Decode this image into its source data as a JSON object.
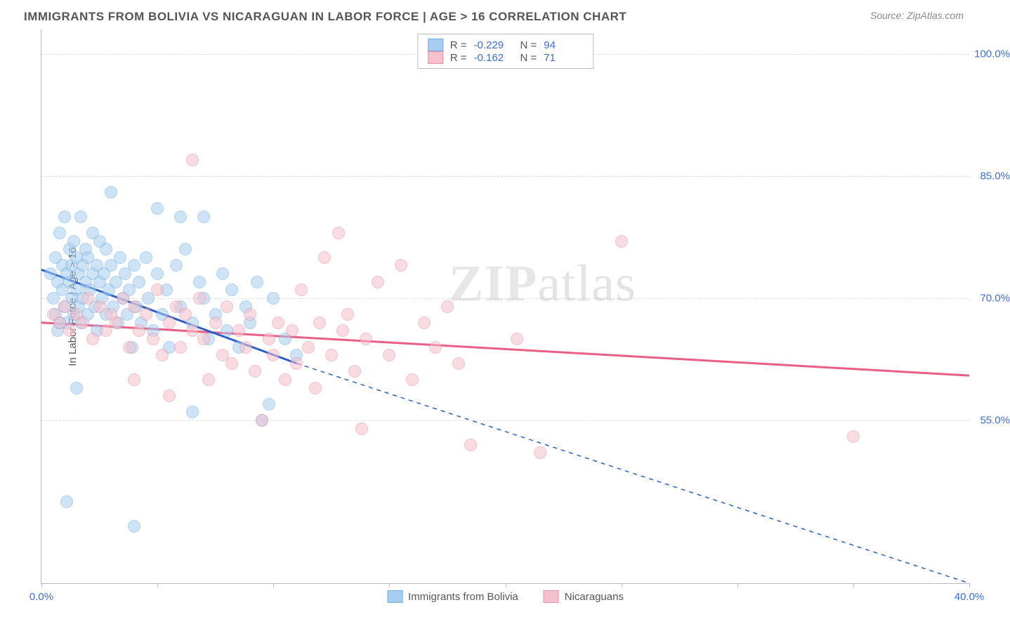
{
  "title": "IMMIGRANTS FROM BOLIVIA VS NICARAGUAN IN LABOR FORCE | AGE > 16 CORRELATION CHART",
  "source": "Source: ZipAtlas.com",
  "ylabel": "In Labor Force | Age > 16",
  "watermark_prefix": "ZIP",
  "watermark_suffix": "atlas",
  "chart": {
    "type": "scatter",
    "xlim": [
      0,
      40
    ],
    "ylim": [
      35,
      103
    ],
    "ytick_values": [
      55.0,
      70.0,
      85.0,
      100.0
    ],
    "ytick_labels": [
      "55.0%",
      "70.0%",
      "85.0%",
      "100.0%"
    ],
    "xtick_values": [
      0,
      5,
      10,
      15,
      20,
      25,
      30,
      35,
      40
    ],
    "xtick_labels_shown": {
      "0": "0.0%",
      "40": "40.0%"
    },
    "grid_color": "#dddddd",
    "axis_color": "#bbbbbb",
    "background_color": "#ffffff",
    "ylabel_color": "#555555",
    "tick_label_color": "#3b6fd6"
  },
  "series": [
    {
      "key": "bolivia",
      "label": "Immigrants from Bolivia",
      "color_fill": "#a9cdf0",
      "color_border": "#6faedc",
      "line_color": "#2a5fc9",
      "line_width": 3,
      "R": "-0.229",
      "N": "94",
      "trend": {
        "x1": 0,
        "y1": 73.5,
        "x2": 11,
        "y2": 62.0
      },
      "trend_extrap": {
        "x1": 11,
        "y1": 62.0,
        "x2": 40,
        "y2": 35.0
      },
      "points": [
        [
          0.4,
          73
        ],
        [
          0.5,
          70
        ],
        [
          0.6,
          68
        ],
        [
          0.6,
          75
        ],
        [
          0.7,
          66
        ],
        [
          0.7,
          72
        ],
        [
          0.8,
          67
        ],
        [
          0.8,
          78
        ],
        [
          0.9,
          71
        ],
        [
          0.9,
          74
        ],
        [
          1.0,
          69
        ],
        [
          1.0,
          80
        ],
        [
          1.1,
          73
        ],
        [
          1.1,
          67
        ],
        [
          1.1,
          45
        ],
        [
          1.2,
          72
        ],
        [
          1.2,
          76
        ],
        [
          1.3,
          70
        ],
        [
          1.3,
          74
        ],
        [
          1.4,
          68
        ],
        [
          1.4,
          77
        ],
        [
          1.5,
          71
        ],
        [
          1.5,
          75
        ],
        [
          1.5,
          59
        ],
        [
          1.6,
          69
        ],
        [
          1.6,
          73
        ],
        [
          1.7,
          67
        ],
        [
          1.7,
          80
        ],
        [
          1.8,
          74
        ],
        [
          1.8,
          70
        ],
        [
          1.9,
          72
        ],
        [
          1.9,
          76
        ],
        [
          2.0,
          68
        ],
        [
          2.0,
          75
        ],
        [
          2.1,
          71
        ],
        [
          2.2,
          73
        ],
        [
          2.2,
          78
        ],
        [
          2.3,
          69
        ],
        [
          2.4,
          74
        ],
        [
          2.4,
          66
        ],
        [
          2.5,
          72
        ],
        [
          2.5,
          77
        ],
        [
          2.6,
          70
        ],
        [
          2.7,
          73
        ],
        [
          2.8,
          68
        ],
        [
          2.8,
          76
        ],
        [
          2.9,
          71
        ],
        [
          3.0,
          74
        ],
        [
          3.0,
          83
        ],
        [
          3.1,
          69
        ],
        [
          3.2,
          72
        ],
        [
          3.3,
          67
        ],
        [
          3.4,
          75
        ],
        [
          3.5,
          70
        ],
        [
          3.6,
          73
        ],
        [
          3.7,
          68
        ],
        [
          3.8,
          71
        ],
        [
          3.9,
          64
        ],
        [
          4.0,
          74
        ],
        [
          4.0,
          42
        ],
        [
          4.1,
          69
        ],
        [
          4.2,
          72
        ],
        [
          4.3,
          67
        ],
        [
          4.5,
          75
        ],
        [
          4.6,
          70
        ],
        [
          4.8,
          66
        ],
        [
          5.0,
          73
        ],
        [
          5.0,
          81
        ],
        [
          5.2,
          68
        ],
        [
          5.4,
          71
        ],
        [
          5.5,
          64
        ],
        [
          5.8,
          74
        ],
        [
          6.0,
          69
        ],
        [
          6.2,
          76
        ],
        [
          6.5,
          67
        ],
        [
          6.5,
          56
        ],
        [
          6.8,
          72
        ],
        [
          7.0,
          70
        ],
        [
          7.2,
          65
        ],
        [
          7.5,
          68
        ],
        [
          7.8,
          73
        ],
        [
          8.0,
          66
        ],
        [
          8.2,
          71
        ],
        [
          8.5,
          64
        ],
        [
          8.8,
          69
        ],
        [
          9.0,
          67
        ],
        [
          9.3,
          72
        ],
        [
          9.5,
          55
        ],
        [
          9.8,
          57
        ],
        [
          10.0,
          70
        ],
        [
          10.5,
          65
        ],
        [
          11.0,
          63
        ],
        [
          6.0,
          80
        ],
        [
          7.0,
          80
        ]
      ]
    },
    {
      "key": "nicaragua",
      "label": "Nicaraguans",
      "color_fill": "#f5c1cc",
      "color_border": "#e98fa5",
      "line_color": "#ea5e85",
      "line_width": 3,
      "R": "-0.162",
      "N": "71",
      "trend": {
        "x1": 0,
        "y1": 67.0,
        "x2": 40,
        "y2": 60.5
      },
      "points": [
        [
          0.5,
          68
        ],
        [
          0.8,
          67
        ],
        [
          1.0,
          69
        ],
        [
          1.2,
          66
        ],
        [
          1.5,
          68
        ],
        [
          1.8,
          67
        ],
        [
          2.0,
          70
        ],
        [
          2.2,
          65
        ],
        [
          2.5,
          69
        ],
        [
          2.8,
          66
        ],
        [
          3.0,
          68
        ],
        [
          3.2,
          67
        ],
        [
          3.5,
          70
        ],
        [
          3.8,
          64
        ],
        [
          4.0,
          69
        ],
        [
          4.2,
          66
        ],
        [
          4.5,
          68
        ],
        [
          4.8,
          65
        ],
        [
          5.0,
          71
        ],
        [
          5.2,
          63
        ],
        [
          5.5,
          67
        ],
        [
          5.8,
          69
        ],
        [
          6.0,
          64
        ],
        [
          6.2,
          68
        ],
        [
          6.5,
          66
        ],
        [
          6.5,
          87
        ],
        [
          6.8,
          70
        ],
        [
          7.0,
          65
        ],
        [
          7.2,
          60
        ],
        [
          7.5,
          67
        ],
        [
          7.8,
          63
        ],
        [
          8.0,
          69
        ],
        [
          8.2,
          62
        ],
        [
          8.5,
          66
        ],
        [
          8.8,
          64
        ],
        [
          9.0,
          68
        ],
        [
          9.2,
          61
        ],
        [
          9.5,
          55
        ],
        [
          9.8,
          65
        ],
        [
          10.0,
          63
        ],
        [
          10.2,
          67
        ],
        [
          10.5,
          60
        ],
        [
          10.8,
          66
        ],
        [
          11.0,
          62
        ],
        [
          11.2,
          71
        ],
        [
          11.5,
          64
        ],
        [
          11.8,
          59
        ],
        [
          12.0,
          67
        ],
        [
          12.2,
          75
        ],
        [
          12.5,
          63
        ],
        [
          12.8,
          78
        ],
        [
          13.0,
          66
        ],
        [
          13.2,
          68
        ],
        [
          13.5,
          61
        ],
        [
          13.8,
          54
        ],
        [
          14.0,
          65
        ],
        [
          14.5,
          72
        ],
        [
          15.0,
          63
        ],
        [
          15.5,
          74
        ],
        [
          16.0,
          60
        ],
        [
          16.5,
          67
        ],
        [
          17.0,
          64
        ],
        [
          17.5,
          69
        ],
        [
          18.0,
          62
        ],
        [
          18.5,
          52
        ],
        [
          20.5,
          65
        ],
        [
          21.5,
          51
        ],
        [
          25.0,
          77
        ],
        [
          35.0,
          53
        ],
        [
          4.0,
          60
        ],
        [
          5.5,
          58
        ]
      ]
    }
  ],
  "stats_labels": {
    "R": "R =",
    "N": "N ="
  },
  "legend_title": ""
}
